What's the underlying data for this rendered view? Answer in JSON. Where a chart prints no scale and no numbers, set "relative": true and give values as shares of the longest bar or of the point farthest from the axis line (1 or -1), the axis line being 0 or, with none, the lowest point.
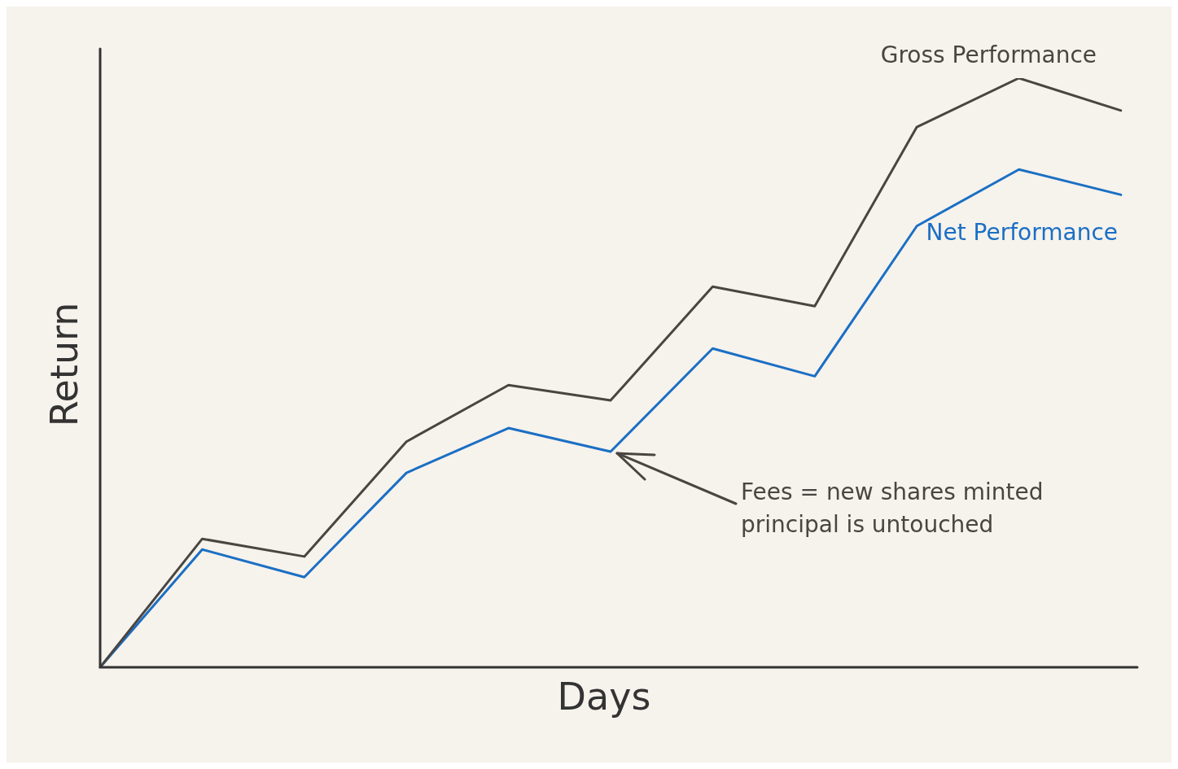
{
  "chart_data": {
    "type": "line",
    "relative": true,
    "xlabel": "Days",
    "ylabel": "Return",
    "categories": [
      null,
      null,
      null,
      null,
      null,
      null,
      null,
      null,
      null,
      null,
      null
    ],
    "series": [
      {
        "name": "Gross Performance",
        "color": "#4a4540",
        "values": [
          0,
          0.218,
          0.188,
          0.383,
          0.479,
          0.453,
          0.646,
          0.613,
          0.917,
          1,
          0.945
        ]
      },
      {
        "name": "Net Performance",
        "color": "#1a6fc4",
        "values": [
          0,
          0.2,
          0.153,
          0.33,
          0.406,
          0.366,
          0.541,
          0.494,
          0.749,
          0.845,
          0.802
        ]
      }
    ],
    "annotations": [
      "Fees = new shares minted\nprincipal is untouched"
    ],
    "legend": false,
    "marker": "none",
    "line_style": "solid"
  }
}
